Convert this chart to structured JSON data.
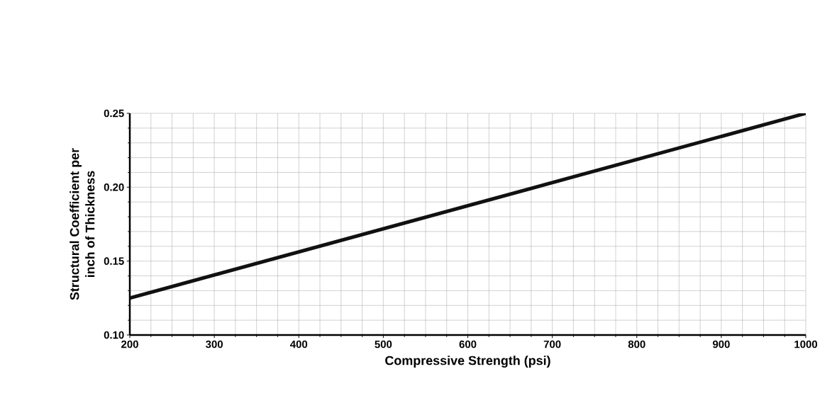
{
  "chart_data": {
    "type": "line",
    "xlabel": "Compressive Strength (psi)",
    "ylabel": "Structural Coefficient per inch of Thickness",
    "x": [
      200,
      1000
    ],
    "values": [
      0.125,
      0.25
    ],
    "color": "#111111",
    "xlim": [
      200,
      1000
    ],
    "ylim": [
      0.1,
      0.25
    ],
    "xticks": [
      200,
      300,
      400,
      500,
      600,
      700,
      800,
      900,
      1000
    ],
    "yticks": [
      {
        "value": 0.1,
        "label": "0.10"
      },
      {
        "value": 0.15,
        "label": "0.15"
      },
      {
        "value": 0.2,
        "label": "0.20"
      },
      {
        "value": 0.25,
        "label": "0.25"
      }
    ],
    "grid": true,
    "marker": "none",
    "line_style": "solid"
  }
}
